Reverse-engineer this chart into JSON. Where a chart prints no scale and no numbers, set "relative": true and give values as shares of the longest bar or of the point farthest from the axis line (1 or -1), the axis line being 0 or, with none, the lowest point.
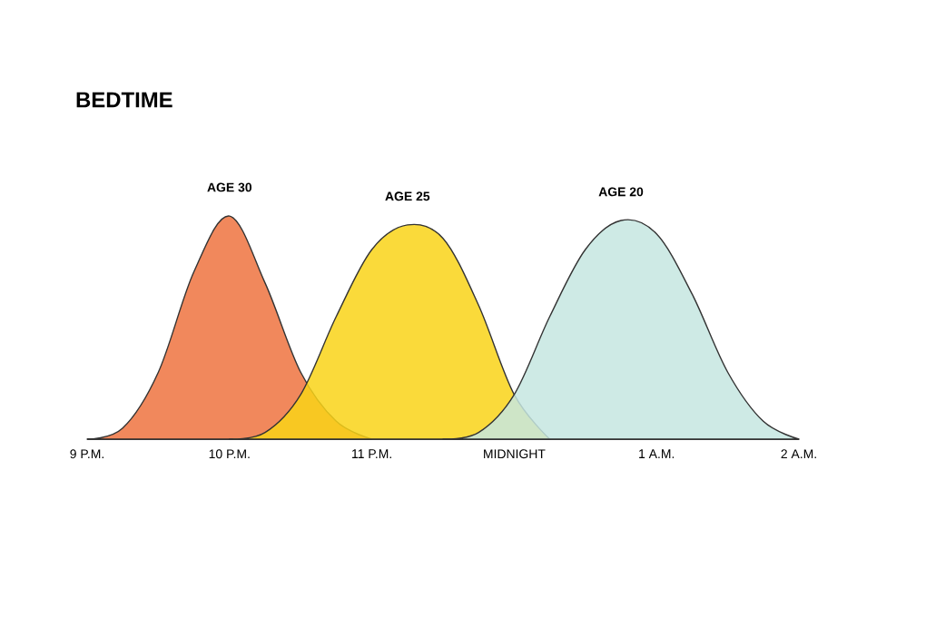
{
  "chart_data": {
    "type": "area",
    "title": "BEDTIME",
    "relative": true,
    "categories": [
      "9 P.M.",
      null,
      null,
      null,
      "10 P.M.",
      null,
      null,
      null,
      "11 P.M.",
      null,
      null,
      null,
      "MIDNIGHT",
      null,
      null,
      null,
      "1 A.M.",
      null,
      null,
      null,
      "2 A.M."
    ],
    "series": [
      {
        "name": "AGE 30",
        "color": "#ee7340",
        "values": [
          0,
          0.05,
          0.3,
          0.75,
          1,
          0.7,
          0.3,
          0.08,
          0,
          null,
          null,
          null,
          null,
          null,
          null,
          null,
          null,
          null,
          null,
          null,
          null
        ]
      },
      {
        "name": "AGE 25",
        "color": "#f9d317",
        "values": [
          null,
          null,
          null,
          null,
          0,
          0.03,
          0.2,
          0.55,
          0.85,
          0.96,
          0.9,
          0.6,
          0.2,
          0,
          null,
          null,
          null,
          null,
          null,
          null,
          null
        ]
      },
      {
        "name": "AGE 20",
        "color": "#c5e6e0",
        "values": [
          null,
          null,
          null,
          null,
          null,
          null,
          null,
          null,
          null,
          null,
          0,
          0.03,
          0.2,
          0.55,
          0.85,
          0.98,
          0.92,
          0.65,
          0.3,
          0.08,
          0
        ]
      }
    ]
  }
}
